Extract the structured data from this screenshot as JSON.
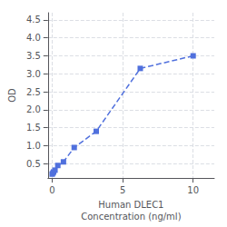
{
  "chart_data": {
    "type": "line",
    "x": [
      0.0,
      0.05,
      0.1,
      0.2,
      0.4,
      0.8,
      1.563,
      3.125,
      6.25,
      10.0
    ],
    "values": [
      0.21,
      0.24,
      0.27,
      0.32,
      0.45,
      0.55,
      0.95,
      1.4,
      3.15,
      3.5
    ],
    "marker": "square",
    "line_style": "dashed",
    "xlabel": "Human DLEC1\nConcentration (ng/ml)",
    "ylabel": "OD",
    "xlim": [
      -0.3,
      11.5
    ],
    "xticks": [
      0,
      5,
      10
    ],
    "ylim": [
      0.1,
      4.7
    ],
    "yticks": [
      0.5,
      {
        "value": 1.0,
        "label": "1.0"
      },
      1.5,
      {
        "value": 2.0,
        "label": "2.0"
      },
      2.5,
      {
        "value": 3.0,
        "label": "3.0"
      },
      3.5,
      {
        "value": 4.0,
        "label": "4.0"
      },
      4.5
    ],
    "grid": true
  }
}
